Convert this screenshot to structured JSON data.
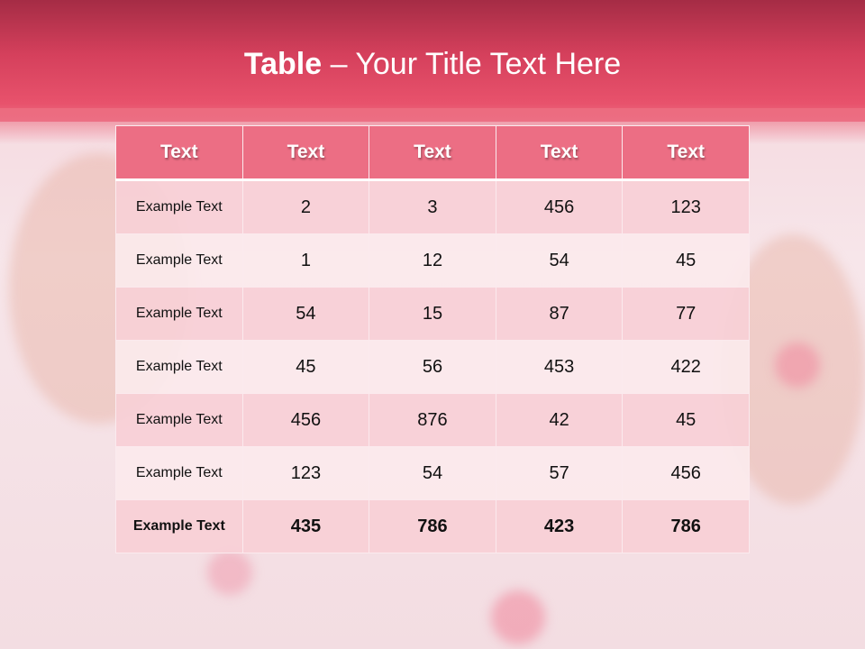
{
  "slide": {
    "title_bold": "Table",
    "title_rest": " – Your Title Text Here"
  },
  "table": {
    "headers": [
      "Text",
      "Text",
      "Text",
      "Text",
      "Text"
    ],
    "rows": [
      [
        "Example Text",
        "2",
        "3",
        "456",
        "123"
      ],
      [
        "Example Text",
        "1",
        "12",
        "54",
        "45"
      ],
      [
        "Example Text",
        "54",
        "15",
        "87",
        "77"
      ],
      [
        "Example Text",
        "45",
        "56",
        "453",
        "422"
      ],
      [
        "Example Text",
        "456",
        "876",
        "42",
        "45"
      ],
      [
        "Example Text",
        "123",
        "54",
        "57",
        "456"
      ],
      [
        "Example Text",
        "435",
        "786",
        "423",
        "786"
      ]
    ]
  },
  "colors": {
    "title_band": "#d5405c",
    "header_fill": "#ec6e84",
    "row_odd": "#f7d0d6",
    "row_even": "#fbeaec"
  }
}
